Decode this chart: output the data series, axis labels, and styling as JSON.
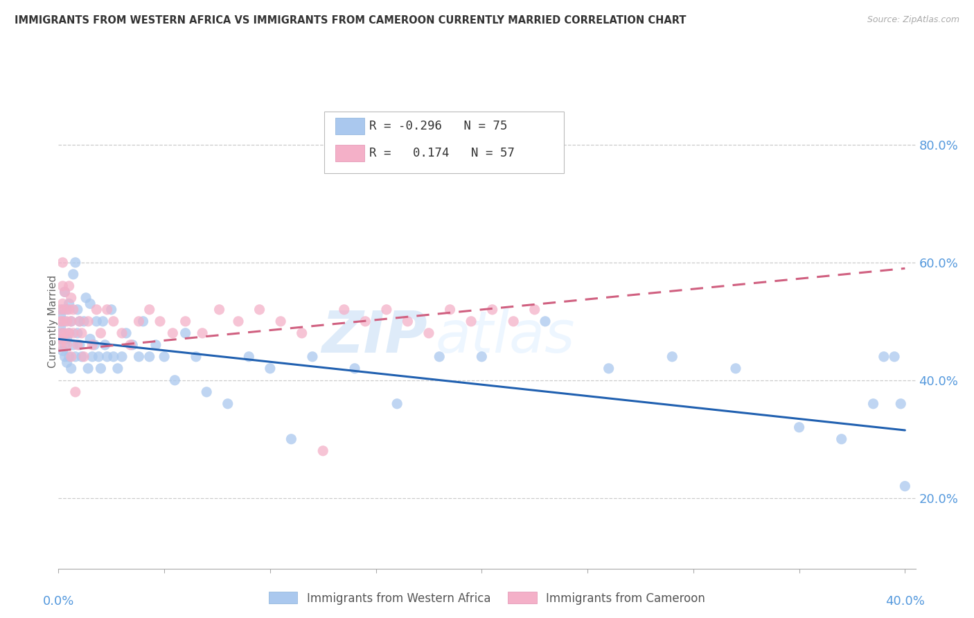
{
  "title": "IMMIGRANTS FROM WESTERN AFRICA VS IMMIGRANTS FROM CAMEROON CURRENTLY MARRIED CORRELATION CHART",
  "source": "Source: ZipAtlas.com",
  "ylabel": "Currently Married",
  "right_yticks": [
    "80.0%",
    "60.0%",
    "40.0%",
    "20.0%"
  ],
  "right_ytick_vals": [
    0.8,
    0.6,
    0.4,
    0.2
  ],
  "watermark_zip": "ZIP",
  "watermark_atlas": "atlas",
  "legend_blue_r": "-0.296",
  "legend_blue_n": "75",
  "legend_pink_r": "0.174",
  "legend_pink_n": "57",
  "blue_color": "#aac8ee",
  "pink_color": "#f4b0c8",
  "blue_line_color": "#2060b0",
  "pink_line_color": "#d06080",
  "background_color": "#ffffff",
  "grid_color": "#cccccc",
  "axis_label_color": "#5599dd",
  "title_color": "#333333",
  "xlim": [
    0.0,
    0.405
  ],
  "ylim": [
    0.08,
    0.92
  ],
  "blue_scatter_x": [
    0.001,
    0.001,
    0.001,
    0.002,
    0.002,
    0.002,
    0.003,
    0.003,
    0.003,
    0.003,
    0.004,
    0.004,
    0.004,
    0.005,
    0.005,
    0.005,
    0.006,
    0.006,
    0.007,
    0.007,
    0.008,
    0.008,
    0.009,
    0.009,
    0.01,
    0.01,
    0.011,
    0.012,
    0.013,
    0.014,
    0.015,
    0.015,
    0.016,
    0.017,
    0.018,
    0.019,
    0.02,
    0.021,
    0.022,
    0.023,
    0.025,
    0.026,
    0.028,
    0.03,
    0.032,
    0.035,
    0.038,
    0.04,
    0.043,
    0.046,
    0.05,
    0.055,
    0.06,
    0.065,
    0.07,
    0.08,
    0.09,
    0.1,
    0.11,
    0.12,
    0.14,
    0.16,
    0.18,
    0.2,
    0.23,
    0.26,
    0.29,
    0.32,
    0.35,
    0.37,
    0.385,
    0.39,
    0.395,
    0.398,
    0.4
  ],
  "blue_scatter_y": [
    0.47,
    0.49,
    0.51,
    0.45,
    0.48,
    0.52,
    0.44,
    0.46,
    0.5,
    0.55,
    0.43,
    0.47,
    0.52,
    0.44,
    0.48,
    0.53,
    0.42,
    0.5,
    0.46,
    0.58,
    0.44,
    0.6,
    0.52,
    0.48,
    0.46,
    0.5,
    0.44,
    0.5,
    0.54,
    0.42,
    0.47,
    0.53,
    0.44,
    0.46,
    0.5,
    0.44,
    0.42,
    0.5,
    0.46,
    0.44,
    0.52,
    0.44,
    0.42,
    0.44,
    0.48,
    0.46,
    0.44,
    0.5,
    0.44,
    0.46,
    0.44,
    0.4,
    0.48,
    0.44,
    0.38,
    0.36,
    0.44,
    0.42,
    0.3,
    0.44,
    0.42,
    0.36,
    0.44,
    0.44,
    0.5,
    0.42,
    0.44,
    0.42,
    0.32,
    0.3,
    0.36,
    0.44,
    0.44,
    0.36,
    0.22
  ],
  "pink_scatter_x": [
    0.001,
    0.001,
    0.001,
    0.001,
    0.002,
    0.002,
    0.002,
    0.002,
    0.002,
    0.003,
    0.003,
    0.003,
    0.004,
    0.004,
    0.005,
    0.005,
    0.005,
    0.006,
    0.006,
    0.006,
    0.007,
    0.007,
    0.008,
    0.009,
    0.01,
    0.011,
    0.012,
    0.014,
    0.016,
    0.018,
    0.02,
    0.023,
    0.026,
    0.03,
    0.034,
    0.038,
    0.043,
    0.048,
    0.054,
    0.06,
    0.068,
    0.076,
    0.085,
    0.095,
    0.105,
    0.115,
    0.125,
    0.135,
    0.145,
    0.155,
    0.165,
    0.175,
    0.185,
    0.195,
    0.205,
    0.215,
    0.225
  ],
  "pink_scatter_y": [
    0.46,
    0.48,
    0.5,
    0.52,
    0.47,
    0.5,
    0.53,
    0.56,
    0.6,
    0.48,
    0.52,
    0.55,
    0.46,
    0.5,
    0.48,
    0.52,
    0.56,
    0.44,
    0.5,
    0.54,
    0.48,
    0.52,
    0.38,
    0.46,
    0.5,
    0.48,
    0.44,
    0.5,
    0.46,
    0.52,
    0.48,
    0.52,
    0.5,
    0.48,
    0.46,
    0.5,
    0.52,
    0.5,
    0.48,
    0.5,
    0.48,
    0.52,
    0.5,
    0.52,
    0.5,
    0.48,
    0.28,
    0.52,
    0.5,
    0.52,
    0.5,
    0.48,
    0.52,
    0.5,
    0.52,
    0.5,
    0.52
  ],
  "blue_trend_x": [
    0.0,
    0.4
  ],
  "blue_trend_y": [
    0.47,
    0.315
  ],
  "pink_trend_x": [
    0.0,
    0.4
  ],
  "pink_trend_y": [
    0.45,
    0.59
  ]
}
